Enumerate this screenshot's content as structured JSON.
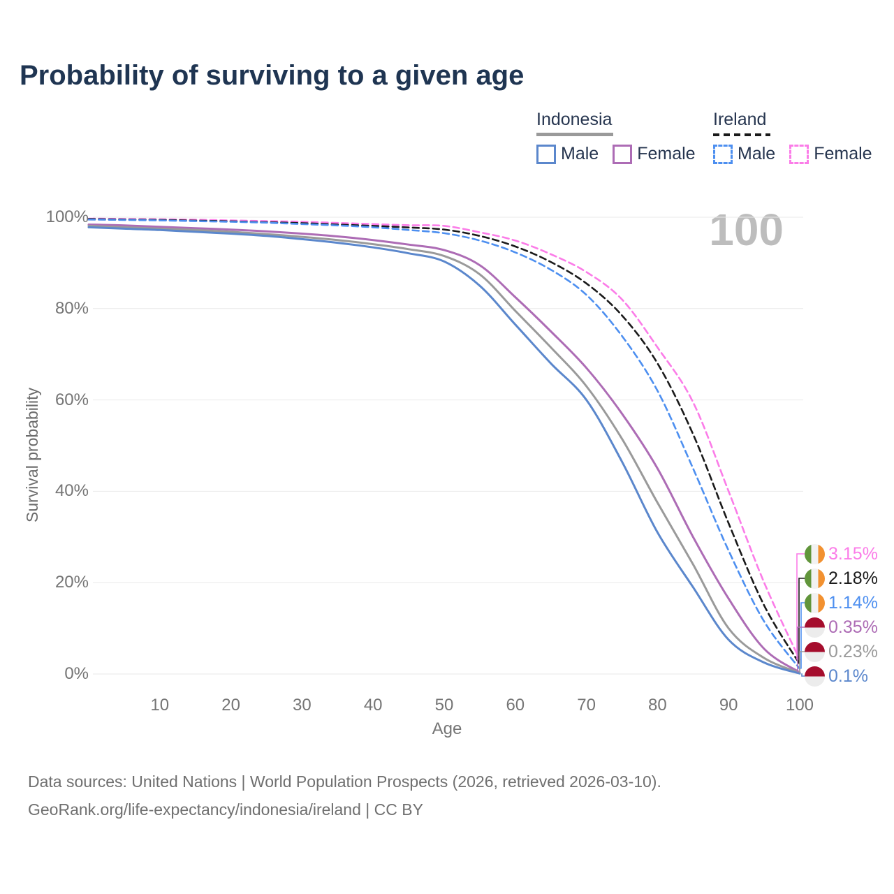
{
  "header": {
    "title": "Probability of surviving to a given age"
  },
  "watermark": "100",
  "legend": {
    "groups": [
      {
        "label": "Indonesia",
        "line_style": "solid",
        "underline_color": "#9a9a9a",
        "items": [
          {
            "label": "Male",
            "color": "#5b87cc"
          },
          {
            "label": "Female",
            "color": "#ad6cb5"
          }
        ]
      },
      {
        "label": "Ireland",
        "line_style": "dashed",
        "underline_color": "#1a1a1a",
        "items": [
          {
            "label": "Male",
            "color": "#4d8ff0"
          },
          {
            "label": "Female",
            "color": "#fb7ce8"
          }
        ]
      }
    ]
  },
  "chart_data": {
    "type": "line",
    "title": "Probability of surviving to a given age",
    "xlabel": "Age",
    "ylabel": "Survival probability",
    "xlim": [
      0,
      100
    ],
    "ylim": [
      0,
      100
    ],
    "grid": "horizontal-only",
    "x_ticks": [
      10,
      20,
      30,
      40,
      50,
      60,
      70,
      80,
      90,
      100
    ],
    "y_ticks": [
      0,
      20,
      40,
      60,
      80,
      100
    ],
    "y_tick_suffix": "%",
    "x": [
      0,
      5,
      10,
      15,
      20,
      25,
      30,
      35,
      40,
      45,
      50,
      55,
      60,
      65,
      70,
      75,
      80,
      85,
      90,
      95,
      100
    ],
    "series": [
      {
        "name": "Ireland Female",
        "country": "Ireland",
        "sex": "Female",
        "color": "#fb7ce8",
        "dashed": true,
        "flag": "ireland",
        "end_label": "3.15%",
        "values": [
          99.7,
          99.62,
          99.55,
          99.45,
          99.3,
          99.15,
          99.0,
          98.75,
          98.5,
          98.25,
          98.1,
          96.7,
          94.9,
          91.9,
          88.0,
          82.0,
          71.5,
          59.5,
          40.0,
          20.0,
          3.15
        ]
      },
      {
        "name": "Ireland Both sexes",
        "country": "Ireland",
        "sex": "Both",
        "color": "#1a1a1a",
        "dashed": true,
        "flag": "ireland",
        "end_label": "2.18%",
        "values": [
          99.6,
          99.5,
          99.4,
          99.25,
          99.1,
          98.9,
          98.7,
          98.4,
          98.1,
          97.75,
          97.3,
          95.9,
          93.6,
          90.2,
          85.5,
          78.5,
          68.0,
          52.5,
          33.0,
          15.0,
          2.18
        ]
      },
      {
        "name": "Ireland Male",
        "country": "Ireland",
        "sex": "Male",
        "color": "#4d8ff0",
        "dashed": true,
        "flag": "ireland",
        "end_label": "1.14%",
        "values": [
          99.5,
          99.4,
          99.3,
          99.15,
          99.0,
          98.8,
          98.5,
          98.2,
          97.8,
          97.2,
          96.5,
          94.9,
          92.3,
          88.5,
          83.0,
          74.0,
          62.0,
          45.0,
          27.0,
          11.5,
          1.14
        ]
      },
      {
        "name": "Indonesia Female",
        "country": "Indonesia",
        "sex": "Female",
        "color": "#ad6cb5",
        "dashed": false,
        "flag": "indonesia",
        "end_label": "0.35%",
        "values": [
          98.4,
          98.2,
          97.9,
          97.6,
          97.3,
          96.9,
          96.4,
          95.8,
          95.0,
          94.0,
          92.8,
          89.5,
          82.5,
          75.0,
          67.0,
          57.0,
          45.0,
          30.0,
          16.5,
          5.5,
          0.35
        ]
      },
      {
        "name": "Indonesia Both sexes",
        "country": "Indonesia",
        "sex": "Both",
        "color": "#9a9a9a",
        "dashed": false,
        "flag": "indonesia",
        "end_label": "0.23%",
        "values": [
          98.1,
          97.8,
          97.5,
          97.2,
          96.8,
          96.3,
          95.7,
          95.0,
          94.1,
          93.0,
          91.5,
          87.5,
          79.5,
          71.5,
          63.0,
          51.5,
          37.5,
          24.0,
          10.0,
          3.5,
          0.23
        ]
      },
      {
        "name": "Indonesia Male",
        "country": "Indonesia",
        "sex": "Male",
        "color": "#5b87cc",
        "dashed": false,
        "flag": "indonesia",
        "end_label": "0.1%",
        "values": [
          97.8,
          97.5,
          97.2,
          96.8,
          96.4,
          95.9,
          95.2,
          94.4,
          93.4,
          92.1,
          90.3,
          85.0,
          76.5,
          68.0,
          60.0,
          46.5,
          31.0,
          19.0,
          7.5,
          2.5,
          0.1
        ]
      }
    ],
    "flag_colors": {
      "ireland": [
        "#61953b",
        "#f2f2f2",
        "#f29130"
      ],
      "indonesia": [
        "#a50d2d",
        "#ececec"
      ]
    },
    "gridline_color": "#e9e9e9"
  },
  "footer": {
    "line1": "Data sources: United Nations | World Population Prospects (2026, retrieved 2026-03-10).",
    "line2": "GeoRank.org/life-expectancy/indonesia/ireland | CC BY"
  }
}
